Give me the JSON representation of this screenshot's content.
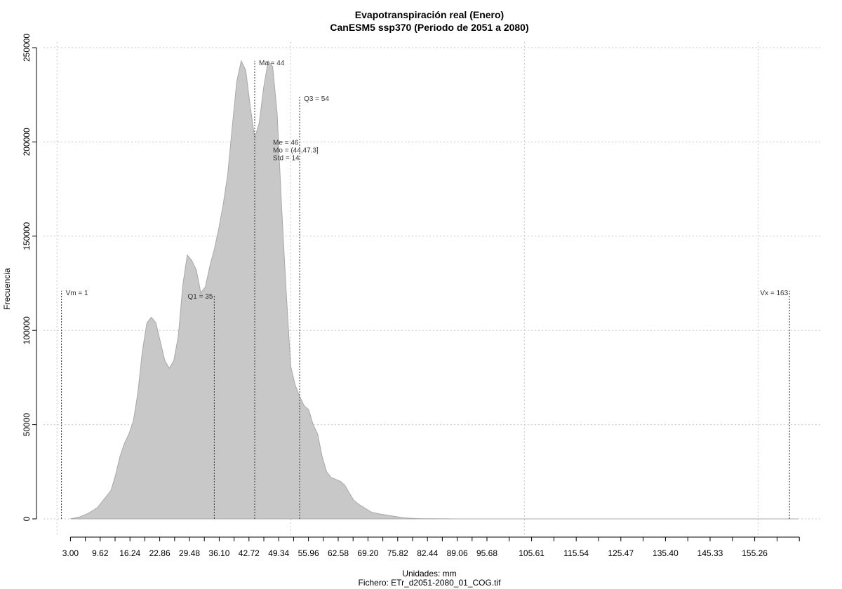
{
  "chart_data": {
    "type": "area",
    "title": "Evapotranspiración real (Enero)",
    "subtitle": "CanESM5 ssp370 (Periodo de 2051 a 2080)",
    "xlabel": "Unidades: mm",
    "ylabel": "Frecuencia",
    "footnote": "Fichero: ETr_d2051-2080_01_COG.tif",
    "xlim": [
      -3,
      170
    ],
    "ylim": [
      0,
      250000
    ],
    "x_tick_labels": [
      "3.00",
      "9.62",
      "16.24",
      "22.86",
      "29.48",
      "36.10",
      "42.72",
      "49.34",
      "55.96",
      "62.58",
      "69.20",
      "75.82",
      "82.44",
      "89.06",
      "95.68",
      "105.61",
      "115.54",
      "125.47",
      "135.40",
      "145.33",
      "155.26"
    ],
    "x_tick_values": [
      3.0,
      9.62,
      16.24,
      22.86,
      29.48,
      36.1,
      42.72,
      49.34,
      55.96,
      62.58,
      69.2,
      75.82,
      82.44,
      89.06,
      95.68,
      105.61,
      115.54,
      125.47,
      135.4,
      145.33,
      155.26
    ],
    "x_minor_ticks": [
      3.0,
      6.31,
      9.62,
      12.93,
      16.24,
      19.55,
      22.86,
      26.17,
      29.48,
      32.79,
      36.1,
      39.41,
      42.72,
      46.03,
      49.34,
      52.65,
      55.96,
      59.27,
      62.58,
      65.89,
      69.2,
      72.51,
      75.82,
      79.13,
      82.44,
      85.75,
      89.06,
      92.37,
      95.68,
      100.64,
      105.61,
      110.58,
      115.54,
      120.51,
      125.47,
      130.44,
      135.4,
      140.37,
      145.33,
      150.3,
      155.26,
      160.23,
      165.19
    ],
    "y_ticks": [
      0,
      50000,
      100000,
      150000,
      200000,
      250000
    ],
    "y_tick_labels": [
      "0",
      "50000",
      "100000",
      "150000",
      "200000",
      "250000"
    ],
    "x_grid": [
      0,
      52,
      104,
      156
    ],
    "grid": true,
    "series": [
      {
        "x": [
          3,
          5,
          7,
          9,
          10,
          12,
          13,
          14,
          15,
          16,
          17,
          18,
          19,
          20,
          21,
          22,
          23,
          24,
          25,
          26,
          27,
          28,
          29,
          30,
          31,
          32,
          33,
          34,
          35,
          36,
          37,
          38,
          39,
          40,
          41,
          42,
          43,
          44,
          45,
          46,
          47,
          48,
          49,
          50,
          51,
          52,
          53,
          54,
          55,
          56,
          57,
          58,
          59,
          60,
          61,
          62,
          63,
          64,
          65,
          66,
          67,
          68,
          69,
          70,
          71,
          72,
          73,
          74,
          75,
          76,
          77,
          78,
          79,
          80,
          81,
          82,
          83,
          84,
          85,
          86,
          87,
          88,
          89,
          90,
          92,
          94,
          96,
          98,
          100,
          105,
          110,
          120,
          130,
          140,
          150,
          160,
          165
        ],
        "y": [
          0,
          1000,
          3000,
          6000,
          9000,
          15000,
          23000,
          33000,
          40000,
          45000,
          52000,
          67000,
          89000,
          104000,
          107000,
          104000,
          94000,
          84000,
          80000,
          84000,
          97000,
          124000,
          140000,
          137000,
          132000,
          120000,
          123000,
          134000,
          143000,
          154000,
          167000,
          183000,
          208000,
          232000,
          243000,
          238000,
          219000,
          202000,
          210000,
          229000,
          243000,
          240000,
          215000,
          165000,
          121000,
          81000,
          71000,
          65000,
          60000,
          58000,
          50000,
          45000,
          33000,
          25000,
          22000,
          21000,
          20000,
          18000,
          14000,
          10000,
          8000,
          6500,
          5000,
          3500,
          3000,
          2500,
          2200,
          1800,
          1400,
          1000,
          600,
          400,
          300,
          200,
          150,
          100,
          80,
          60,
          40,
          30,
          20,
          15,
          10,
          5,
          3,
          2,
          1,
          1,
          0,
          0,
          0,
          0,
          0,
          0,
          0,
          0,
          0
        ]
      }
    ],
    "markers": [
      {
        "label": "Vm = 1",
        "x": 1,
        "top": 121000,
        "label_pos": "right"
      },
      {
        "label": "Q1 = 35",
        "x": 35,
        "top": 119000,
        "label_pos": "left"
      },
      {
        "label": "Ma = 44",
        "x": 44,
        "top": 243000,
        "label_pos": "right"
      },
      {
        "label": "Q3 = 54",
        "x": 54,
        "top": 224000,
        "label_pos": "right"
      },
      {
        "label": "Vx = 163",
        "x": 163,
        "top": 121000,
        "label_pos": "left"
      }
    ],
    "stats_text": [
      "Me = 46",
      "Mo = (44,47.3]",
      "Std = 14"
    ],
    "stats_anchor": {
      "x": 49,
      "y": 200000
    }
  }
}
